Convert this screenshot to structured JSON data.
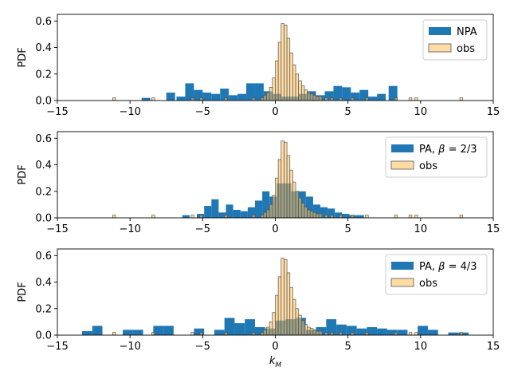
{
  "colors": {
    "model": "#1f77b4",
    "obs_fill": "#ffbf5a",
    "obs_edge": "#555555",
    "axis": "#000000"
  },
  "chart_data": [
    {
      "type": "bar",
      "ylabel": "PDF",
      "xlabel": "",
      "xlim": [
        -15,
        15
      ],
      "ylim": [
        0,
        0.65
      ],
      "xticks": [
        "-15",
        "-10",
        "-5",
        "0",
        "5",
        "10",
        "15"
      ],
      "yticks": [
        "0.0",
        "0.2",
        "0.4",
        "0.6"
      ],
      "legend": {
        "placement": "top-right",
        "entries": [
          {
            "label": "NPA",
            "beta": ""
          },
          {
            "label": "obs",
            "beta": ""
          }
        ]
      },
      "series": [
        {
          "name": "NPA",
          "bin_width": 0.6,
          "bins": [
            [
              -9.2,
              0.02
            ],
            [
              -7.5,
              0.06
            ],
            [
              -6.8,
              0.03
            ],
            [
              -6.2,
              0.13
            ],
            [
              -5.6,
              0.08
            ],
            [
              -5.0,
              0.06
            ],
            [
              -4.4,
              0.05
            ],
            [
              -3.8,
              0.09
            ],
            [
              -3.2,
              0.04
            ],
            [
              -2.6,
              0.05
            ],
            [
              -2.0,
              0.13
            ],
            [
              -1.4,
              0.13
            ],
            [
              -0.8,
              0.07
            ],
            [
              -0.2,
              0.05
            ],
            [
              0.4,
              0.03
            ],
            [
              1.0,
              0.03
            ],
            [
              1.6,
              0.05
            ],
            [
              2.2,
              0.07
            ],
            [
              2.8,
              0.04
            ],
            [
              3.4,
              0.07
            ],
            [
              4.0,
              0.11
            ],
            [
              4.6,
              0.1
            ],
            [
              5.2,
              0.06
            ],
            [
              5.8,
              0.08
            ],
            [
              6.4,
              0.03
            ],
            [
              7.0,
              0.05
            ],
            [
              7.8,
              0.11
            ]
          ]
        },
        {
          "name": "obs",
          "bin_width": 0.2,
          "bins": [
            [
              -11.2,
              0.02
            ],
            [
              -8.5,
              0.02
            ],
            [
              -5.8,
              0.02
            ],
            [
              -5.2,
              0.02
            ],
            [
              -3.5,
              0.02
            ],
            [
              -1.6,
              0.02
            ],
            [
              -1.0,
              0.02
            ],
            [
              -0.8,
              0.04
            ],
            [
              -0.6,
              0.06
            ],
            [
              -0.4,
              0.1
            ],
            [
              -0.2,
              0.17
            ],
            [
              0.0,
              0.3
            ],
            [
              0.2,
              0.44
            ],
            [
              0.4,
              0.58
            ],
            [
              0.6,
              0.57
            ],
            [
              0.8,
              0.47
            ],
            [
              1.0,
              0.36
            ],
            [
              1.2,
              0.27
            ],
            [
              1.4,
              0.2
            ],
            [
              1.6,
              0.15
            ],
            [
              1.8,
              0.11
            ],
            [
              2.0,
              0.08
            ],
            [
              2.2,
              0.06
            ],
            [
              2.4,
              0.05
            ],
            [
              2.6,
              0.04
            ],
            [
              2.8,
              0.03
            ],
            [
              3.0,
              0.03
            ],
            [
              3.4,
              0.02
            ],
            [
              3.8,
              0.02
            ],
            [
              4.4,
              0.02
            ],
            [
              5.2,
              0.02
            ],
            [
              6.2,
              0.02
            ],
            [
              8.2,
              0.02
            ],
            [
              9.2,
              0.02
            ],
            [
              9.6,
              0.02
            ],
            [
              12.7,
              0.02
            ]
          ]
        }
      ]
    },
    {
      "type": "bar",
      "ylabel": "PDF",
      "xlabel": "",
      "xlim": [
        -15,
        15
      ],
      "ylim": [
        0,
        0.65
      ],
      "xticks": [
        "-15",
        "-10",
        "-5",
        "0",
        "5",
        "10",
        "15"
      ],
      "yticks": [
        "0.0",
        "0.2",
        "0.4",
        "0.6"
      ],
      "legend": {
        "placement": "top-right",
        "entries": [
          {
            "label": "PA, ",
            "beta": "β = 2/3"
          },
          {
            "label": "obs",
            "beta": ""
          }
        ]
      },
      "series": [
        {
          "name": "PA, β = 2/3",
          "bin_width": 0.5,
          "bins": [
            [
              -6.4,
              0.02
            ],
            [
              -5.4,
              0.03
            ],
            [
              -4.9,
              0.09
            ],
            [
              -4.4,
              0.14
            ],
            [
              -3.9,
              0.04
            ],
            [
              -3.4,
              0.1
            ],
            [
              -2.9,
              0.06
            ],
            [
              -2.4,
              0.05
            ],
            [
              -1.9,
              0.08
            ],
            [
              -1.4,
              0.13
            ],
            [
              -0.9,
              0.2
            ],
            [
              -0.4,
              0.16
            ],
            [
              0.1,
              0.26
            ],
            [
              0.6,
              0.26
            ],
            [
              1.1,
              0.2
            ],
            [
              1.6,
              0.2
            ],
            [
              2.1,
              0.16
            ],
            [
              2.6,
              0.1
            ],
            [
              3.1,
              0.08
            ],
            [
              3.6,
              0.07
            ],
            [
              4.1,
              0.04
            ],
            [
              4.6,
              0.03
            ],
            [
              5.1,
              0.02
            ],
            [
              5.6,
              0.02
            ]
          ]
        },
        {
          "name": "obs",
          "bin_width": 0.2,
          "bins": [
            [
              -11.2,
              0.02
            ],
            [
              -8.5,
              0.02
            ],
            [
              -5.8,
              0.02
            ],
            [
              -5.2,
              0.02
            ],
            [
              -3.5,
              0.02
            ],
            [
              -1.6,
              0.02
            ],
            [
              -1.0,
              0.02
            ],
            [
              -0.8,
              0.04
            ],
            [
              -0.6,
              0.06
            ],
            [
              -0.4,
              0.1
            ],
            [
              -0.2,
              0.17
            ],
            [
              0.0,
              0.3
            ],
            [
              0.2,
              0.44
            ],
            [
              0.4,
              0.58
            ],
            [
              0.6,
              0.57
            ],
            [
              0.8,
              0.47
            ],
            [
              1.0,
              0.36
            ],
            [
              1.2,
              0.27
            ],
            [
              1.4,
              0.2
            ],
            [
              1.6,
              0.15
            ],
            [
              1.8,
              0.11
            ],
            [
              2.0,
              0.08
            ],
            [
              2.2,
              0.06
            ],
            [
              2.4,
              0.05
            ],
            [
              2.6,
              0.04
            ],
            [
              2.8,
              0.03
            ],
            [
              3.0,
              0.03
            ],
            [
              3.4,
              0.02
            ],
            [
              3.8,
              0.02
            ],
            [
              4.4,
              0.02
            ],
            [
              5.2,
              0.02
            ],
            [
              6.2,
              0.02
            ],
            [
              8.2,
              0.02
            ],
            [
              9.2,
              0.02
            ],
            [
              9.6,
              0.02
            ],
            [
              12.7,
              0.02
            ]
          ]
        }
      ]
    },
    {
      "type": "bar",
      "ylabel": "PDF",
      "xlabel": "k_M",
      "xlim": [
        -15,
        15
      ],
      "ylim": [
        0,
        0.65
      ],
      "xticks": [
        "-15",
        "-10",
        "-5",
        "0",
        "5",
        "10",
        "15"
      ],
      "yticks": [
        "0.0",
        "0.2",
        "0.4",
        "0.6"
      ],
      "legend": {
        "placement": "top-right",
        "entries": [
          {
            "label": "PA, ",
            "beta": "β = 4/3"
          },
          {
            "label": "obs",
            "beta": ""
          }
        ]
      },
      "series": [
        {
          "name": "PA, β = 4/3",
          "bin_width": 0.7,
          "bins": [
            [
              -13.3,
              0.03
            ],
            [
              -12.6,
              0.07
            ],
            [
              -10.5,
              0.04
            ],
            [
              -9.8,
              0.04
            ],
            [
              -8.4,
              0.07
            ],
            [
              -7.7,
              0.07
            ],
            [
              -5.6,
              0.05
            ],
            [
              -4.2,
              0.04
            ],
            [
              -3.5,
              0.13
            ],
            [
              -2.8,
              0.09
            ],
            [
              -2.1,
              0.12
            ],
            [
              -1.4,
              0.06
            ],
            [
              -0.7,
              0.05
            ],
            [
              0.0,
              0.11
            ],
            [
              0.7,
              0.12
            ],
            [
              1.4,
              0.13
            ],
            [
              2.1,
              0.04
            ],
            [
              2.8,
              0.06
            ],
            [
              3.5,
              0.12
            ],
            [
              4.2,
              0.08
            ],
            [
              4.9,
              0.07
            ],
            [
              5.6,
              0.05
            ],
            [
              6.3,
              0.06
            ],
            [
              7.0,
              0.05
            ],
            [
              7.7,
              0.04
            ],
            [
              8.4,
              0.04
            ],
            [
              9.8,
              0.07
            ],
            [
              10.5,
              0.04
            ],
            [
              11.9,
              0.02
            ],
            [
              12.6,
              0.02
            ]
          ]
        },
        {
          "name": "obs",
          "bin_width": 0.2,
          "bins": [
            [
              -11.2,
              0.02
            ],
            [
              -8.5,
              0.02
            ],
            [
              -5.8,
              0.02
            ],
            [
              -5.2,
              0.02
            ],
            [
              -3.5,
              0.02
            ],
            [
              -1.6,
              0.02
            ],
            [
              -1.0,
              0.02
            ],
            [
              -0.8,
              0.04
            ],
            [
              -0.6,
              0.06
            ],
            [
              -0.4,
              0.1
            ],
            [
              -0.2,
              0.17
            ],
            [
              0.0,
              0.3
            ],
            [
              0.2,
              0.44
            ],
            [
              0.4,
              0.58
            ],
            [
              0.6,
              0.57
            ],
            [
              0.8,
              0.47
            ],
            [
              1.0,
              0.36
            ],
            [
              1.2,
              0.27
            ],
            [
              1.4,
              0.2
            ],
            [
              1.6,
              0.15
            ],
            [
              1.8,
              0.11
            ],
            [
              2.0,
              0.08
            ],
            [
              2.2,
              0.06
            ],
            [
              2.4,
              0.05
            ],
            [
              2.6,
              0.04
            ],
            [
              2.8,
              0.03
            ],
            [
              3.0,
              0.03
            ],
            [
              3.4,
              0.02
            ],
            [
              3.8,
              0.02
            ],
            [
              4.4,
              0.02
            ],
            [
              5.2,
              0.02
            ],
            [
              6.2,
              0.02
            ],
            [
              8.2,
              0.02
            ],
            [
              9.2,
              0.02
            ],
            [
              9.6,
              0.02
            ],
            [
              12.7,
              0.02
            ]
          ]
        }
      ]
    }
  ]
}
